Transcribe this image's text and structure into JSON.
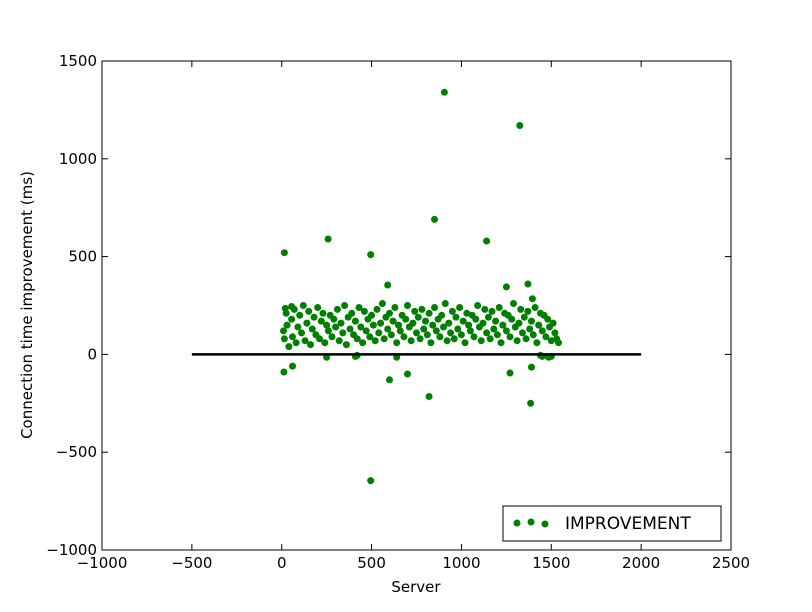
{
  "chart_data": {
    "type": "scatter",
    "title": "",
    "xlabel": "Server",
    "ylabel": "Connection time improvement (ms)",
    "xlim": [
      -1000,
      2500
    ],
    "ylim": [
      -1000,
      1500
    ],
    "xticks": [
      -1000,
      -500,
      0,
      500,
      1000,
      1500,
      2000,
      2500
    ],
    "yticks": [
      -1000,
      -500,
      0,
      500,
      1000,
      1500
    ],
    "xtick_labels": [
      "−1000",
      "−500",
      "0",
      "500",
      "1000",
      "1500",
      "2000",
      "2500"
    ],
    "ytick_labels": [
      "−1000",
      "−500",
      "0",
      "500",
      "1000",
      "1500"
    ],
    "grid": false,
    "legend": {
      "position": "lower-right",
      "entries": [
        "IMPROVEMENT"
      ]
    },
    "series": [
      {
        "name": "IMPROVEMENT",
        "color": "#007f00",
        "x": [
          10,
          15,
          25,
          30,
          40,
          55,
          60,
          70,
          80,
          90,
          100,
          110,
          120,
          130,
          140,
          150,
          160,
          170,
          180,
          190,
          200,
          210,
          220,
          230,
          240,
          250,
          260,
          270,
          280,
          290,
          300,
          310,
          320,
          330,
          340,
          350,
          360,
          370,
          380,
          390,
          400,
          410,
          420,
          430,
          440,
          450,
          460,
          470,
          480,
          490,
          500,
          510,
          520,
          530,
          540,
          550,
          560,
          570,
          580,
          590,
          600,
          610,
          620,
          630,
          640,
          650,
          660,
          670,
          680,
          690,
          700,
          710,
          720,
          730,
          740,
          750,
          760,
          770,
          780,
          790,
          800,
          810,
          820,
          830,
          840,
          850,
          860,
          870,
          880,
          890,
          900,
          910,
          920,
          930,
          940,
          950,
          960,
          970,
          980,
          990,
          1000,
          1010,
          1020,
          1030,
          1040,
          1050,
          1060,
          1070,
          1080,
          1090,
          1100,
          1110,
          1120,
          1130,
          1140,
          1150,
          1160,
          1170,
          1180,
          1190,
          1200,
          1210,
          1220,
          1230,
          1240,
          1250,
          1260,
          1270,
          1280,
          1290,
          1300,
          1310,
          1320,
          1330,
          1340,
          1350,
          1360,
          1370,
          1380,
          1390,
          1400,
          1410,
          1420,
          1430,
          1440,
          1450,
          1460,
          1470,
          1480,
          1490,
          1500,
          1510,
          1520,
          1530,
          1540,
          905,
          1325,
          495,
          850,
          1140,
          258,
          15,
          495,
          12,
          60,
          250,
          410,
          420,
          600,
          640,
          1270,
          1440,
          1450,
          1485,
          1500,
          1390,
          820,
          1385,
          590,
          700,
          1250,
          1370,
          1395,
          20,
          55
        ],
        "y": [
          120,
          80,
          210,
          150,
          40,
          180,
          90,
          230,
          60,
          140,
          200,
          110,
          250,
          70,
          160,
          220,
          50,
          130,
          190,
          100,
          240,
          80,
          170,
          210,
          60,
          150,
          120,
          200,
          90,
          180,
          140,
          230,
          70,
          160,
          110,
          250,
          50,
          190,
          130,
          210,
          100,
          170,
          80,
          240,
          140,
          60,
          220,
          120,
          180,
          90,
          200,
          150,
          70,
          230,
          110,
          160,
          260,
          80,
          190,
          130,
          210,
          100,
          170,
          240,
          60,
          150,
          120,
          200,
          90,
          180,
          250,
          140,
          70,
          160,
          220,
          110,
          190,
          80,
          230,
          130,
          170,
          100,
          210,
          60,
          150,
          240,
          120,
          180,
          90,
          200,
          140,
          260,
          70,
          160,
          110,
          220,
          80,
          190,
          130,
          240,
          100,
          170,
          60,
          210,
          150,
          120,
          200,
          90,
          180,
          250,
          140,
          70,
          160,
          230,
          110,
          190,
          80,
          220,
          130,
          170,
          100,
          240,
          60,
          150,
          210,
          120,
          200,
          90,
          180,
          260,
          140,
          70,
          160,
          230,
          110,
          190,
          80,
          220,
          130,
          170,
          100,
          240,
          60,
          150,
          210,
          120,
          200,
          90,
          180,
          140,
          70,
          160,
          110,
          80,
          60,
          1340,
          1170,
          510,
          690,
          580,
          590,
          520,
          -645,
          -90,
          -60,
          -15,
          -10,
          -5,
          -130,
          -15,
          -95,
          -5,
          -10,
          -15,
          -10,
          -65,
          -215,
          -250,
          355,
          -100,
          345,
          360,
          285,
          235,
          245
        ]
      }
    ]
  }
}
